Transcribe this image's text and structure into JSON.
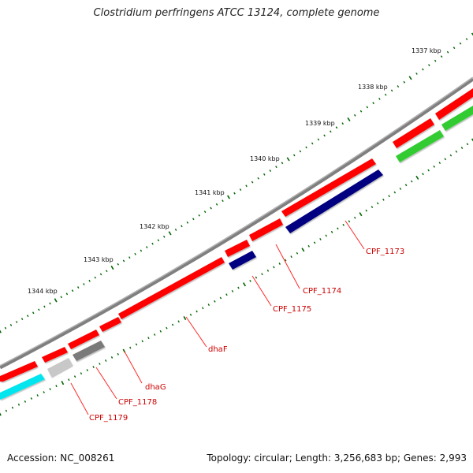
{
  "title": "Clostridium perfringens ATCC 13124, complete genome",
  "footer": {
    "accession": "Accession: NC_008261",
    "summary": "Topology: circular; Length: 3,256,683 bp; Genes: 2,993"
  },
  "ticks": [
    "1337 kbp",
    "1338 kbp",
    "1339 kbp",
    "1340 kbp",
    "1341 kbp",
    "1342 kbp",
    "1343 kbp",
    "1344 kbp"
  ],
  "gene_labels": [
    "CPF_1173",
    "CPF_1174",
    "CPF_1175",
    "dhaF",
    "dhaG",
    "CPF_1178",
    "CPF_1179"
  ],
  "colors": {
    "backbone": "#7f7f7f",
    "gene_red": "#ff0000",
    "gene_navy": "#000080",
    "gene_green": "#33cc33",
    "gene_cyan": "#00e5ee",
    "gene_gray": "#7a7a7a",
    "gene_lightgray": "#c8c8c8",
    "tick_green": "#006400",
    "label_red": "#cc0000"
  }
}
